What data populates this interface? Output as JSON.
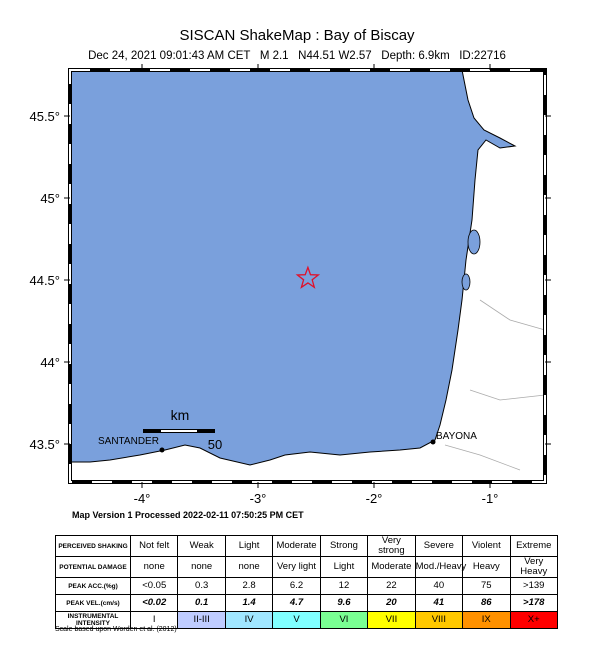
{
  "header": {
    "title": "SISCAN ShakeMap : Bay of Biscay",
    "subtitle": "Dec 24, 2021 09:01:43 AM CET   M 2.1   N44.51 W2.57   Depth: 6.9km   ID:22716"
  },
  "map": {
    "lon_ticks": [
      {
        "value": -4,
        "label": "-4°"
      },
      {
        "value": -3,
        "label": "-3°"
      },
      {
        "value": -2,
        "label": "-2°"
      },
      {
        "value": -1,
        "label": "-1°"
      }
    ],
    "lat_ticks": [
      {
        "value": 45.5,
        "label": "45.5°"
      },
      {
        "value": 45,
        "label": "45°"
      },
      {
        "value": 44.5,
        "label": "44.5°"
      },
      {
        "value": 44,
        "label": "44°"
      },
      {
        "value": 43.5,
        "label": "43.5°"
      }
    ],
    "epicenter": {
      "lon": -2.57,
      "lat": 44.51
    },
    "places": [
      "SANTANDER",
      "BAYONA"
    ],
    "scale_unit": "km",
    "scale_label": "50"
  },
  "version": "Map Version 1 Processed 2022-02-11 07:50:25 PM CET",
  "legend": {
    "row_headers": [
      "PERCEIVED SHAKING",
      "POTENTIAL DAMAGE",
      "PEAK ACC.(%g)",
      "PEAK VEL.(cm/s)",
      "INSTRUMENTAL INTENSITY"
    ],
    "rows": [
      [
        "Not felt",
        "Weak",
        "Light",
        "Moderate",
        "Strong",
        "Very strong",
        "Severe",
        "Violent",
        "Extreme"
      ],
      [
        "none",
        "none",
        "none",
        "Very light",
        "Light",
        "Moderate",
        "Mod./Heavy",
        "Heavy",
        "Very Heavy"
      ],
      [
        "<0.05",
        "0.3",
        "2.8",
        "6.2",
        "12",
        "22",
        "40",
        "75",
        ">139"
      ],
      [
        "<0.02",
        "0.1",
        "1.4",
        "4.7",
        "9.6",
        "20",
        "41",
        "86",
        ">178"
      ],
      [
        "I",
        "II-III",
        "IV",
        "V",
        "VI",
        "VII",
        "VIII",
        "IX",
        "X+"
      ]
    ]
  },
  "footnote": "Scale based upon Worden et al. (2012)"
}
